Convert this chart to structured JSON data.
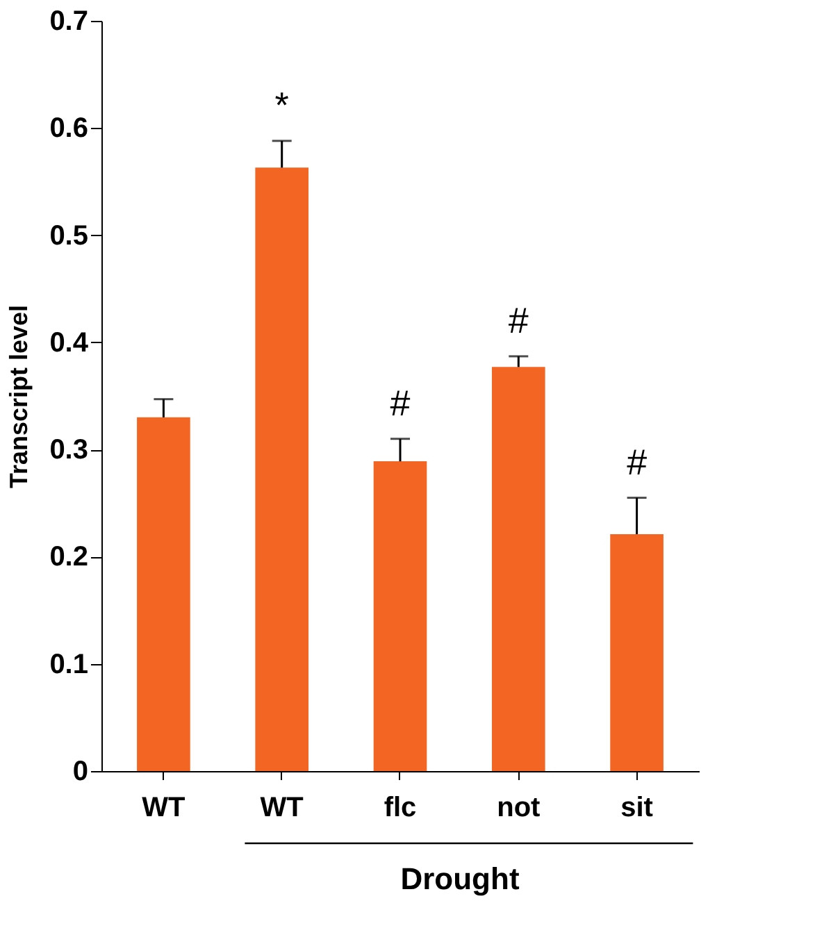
{
  "chart_data": {
    "type": "bar",
    "ylabel": "Transcript level",
    "categories": [
      "WT",
      "WT",
      "flc",
      "not",
      "sit"
    ],
    "values": [
      0.33,
      0.563,
      0.289,
      0.377,
      0.221
    ],
    "errors": [
      0.017,
      0.025,
      0.021,
      0.01,
      0.034
    ],
    "color": "#f26522",
    "ylim": [
      0,
      0.7
    ],
    "yticks": [
      {
        "value": 0,
        "label": "0"
      },
      {
        "value": 0.1,
        "label": "0.1"
      },
      {
        "value": 0.2,
        "label": "0.2"
      },
      {
        "value": 0.3,
        "label": "0.3"
      },
      {
        "value": 0.4,
        "label": "0.4"
      },
      {
        "value": 0.5,
        "label": "0.5"
      },
      {
        "value": 0.6,
        "label": "0.6"
      },
      {
        "value": 0.7,
        "label": "0.7"
      }
    ],
    "grid": false,
    "annotations": [
      "*",
      "#",
      "#",
      "#",
      "Drought"
    ]
  }
}
